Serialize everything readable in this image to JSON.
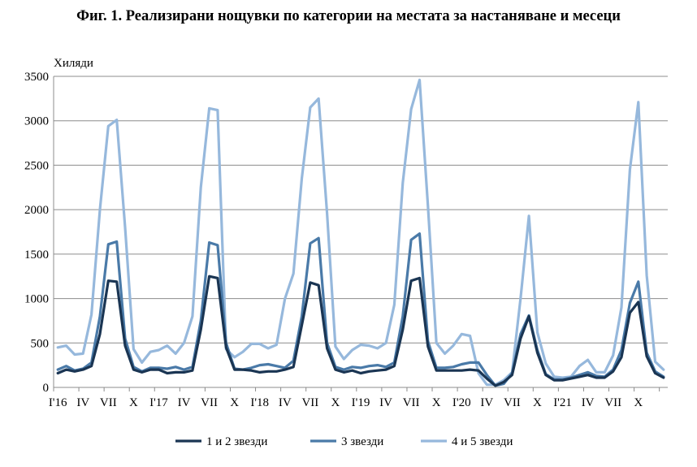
{
  "chart_data": {
    "type": "line",
    "title": "Фиг. 1. Реализирани нощувки по категории на местата за настаняване и месеци",
    "unit_label": "Хиляди",
    "ylim": [
      0,
      3500
    ],
    "yticks": [
      0,
      500,
      1000,
      1500,
      2000,
      2500,
      3000,
      3500
    ],
    "grid": true,
    "legend_position": "bottom",
    "x_tick_labels": [
      {
        "i": 0,
        "label": "I'16"
      },
      {
        "i": 3,
        "label": "IV"
      },
      {
        "i": 6,
        "label": "VII"
      },
      {
        "i": 9,
        "label": "X"
      },
      {
        "i": 12,
        "label": "I'17"
      },
      {
        "i": 15,
        "label": "IV"
      },
      {
        "i": 18,
        "label": "VII"
      },
      {
        "i": 21,
        "label": "X"
      },
      {
        "i": 24,
        "label": "I'18"
      },
      {
        "i": 27,
        "label": "IV"
      },
      {
        "i": 30,
        "label": "VII"
      },
      {
        "i": 33,
        "label": "X"
      },
      {
        "i": 36,
        "label": "I'19"
      },
      {
        "i": 39,
        "label": "IV"
      },
      {
        "i": 42,
        "label": "VII"
      },
      {
        "i": 45,
        "label": "X"
      },
      {
        "i": 48,
        "label": "I'20"
      },
      {
        "i": 51,
        "label": "IV"
      },
      {
        "i": 54,
        "label": "VII"
      },
      {
        "i": 57,
        "label": "X"
      },
      {
        "i": 60,
        "label": "I'21"
      },
      {
        "i": 63,
        "label": "IV"
      },
      {
        "i": 66,
        "label": "VII"
      },
      {
        "i": 69,
        "label": "X"
      }
    ],
    "series": [
      {
        "name": "1 и 2 звезди",
        "color": "#1a3553",
        "values": [
          160,
          200,
          180,
          200,
          240,
          600,
          1200,
          1190,
          470,
          200,
          170,
          200,
          200,
          160,
          170,
          170,
          190,
          650,
          1250,
          1230,
          450,
          200,
          200,
          190,
          170,
          180,
          180,
          200,
          230,
          700,
          1180,
          1150,
          440,
          200,
          170,
          190,
          160,
          180,
          190,
          200,
          240,
          650,
          1200,
          1230,
          460,
          190,
          190,
          190,
          190,
          200,
          190,
          100,
          20,
          60,
          140,
          550,
          800,
          390,
          140,
          80,
          80,
          100,
          120,
          140,
          110,
          110,
          180,
          340,
          840,
          960,
          350,
          160,
          110
        ]
      },
      {
        "name": "3 звезди",
        "color": "#4a7aa8",
        "values": [
          200,
          240,
          190,
          210,
          280,
          800,
          1610,
          1640,
          550,
          230,
          180,
          220,
          220,
          210,
          230,
          200,
          230,
          750,
          1630,
          1600,
          500,
          210,
          200,
          220,
          250,
          260,
          240,
          220,
          300,
          800,
          1620,
          1680,
          500,
          230,
          200,
          230,
          220,
          240,
          250,
          230,
          280,
          800,
          1660,
          1730,
          520,
          220,
          220,
          230,
          260,
          280,
          280,
          140,
          20,
          40,
          160,
          600,
          810,
          420,
          150,
          90,
          90,
          110,
          140,
          170,
          130,
          120,
          200,
          420,
          950,
          1190,
          390,
          180,
          120
        ]
      },
      {
        "name": "4 и 5 звезди",
        "color": "#96b8dc",
        "values": [
          450,
          470,
          370,
          380,
          820,
          2000,
          2940,
          3010,
          1800,
          430,
          280,
          400,
          420,
          470,
          380,
          500,
          800,
          2250,
          3140,
          3120,
          430,
          340,
          400,
          490,
          490,
          440,
          480,
          1000,
          1280,
          2350,
          3150,
          3250,
          1960,
          460,
          320,
          420,
          480,
          470,
          440,
          500,
          930,
          2300,
          3130,
          3460,
          2040,
          500,
          380,
          470,
          600,
          580,
          160,
          30,
          30,
          80,
          170,
          1000,
          1930,
          620,
          270,
          120,
          110,
          120,
          240,
          310,
          170,
          170,
          360,
          900,
          2450,
          3210,
          1260,
          290,
          200
        ]
      }
    ]
  }
}
